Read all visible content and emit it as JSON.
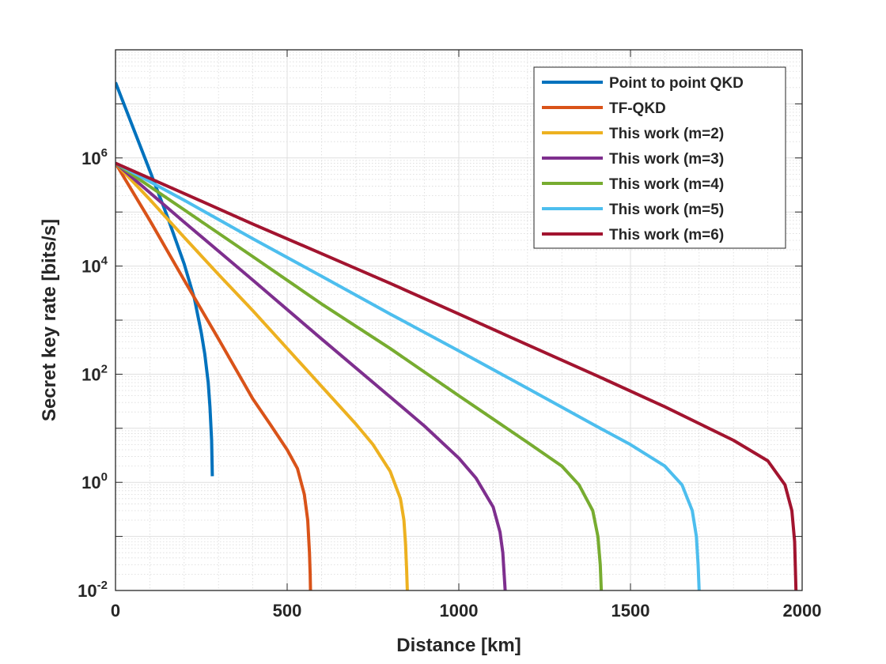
{
  "chart_data": {
    "type": "line",
    "title": "",
    "xlabel": "Distance [km]",
    "ylabel": "Secret key rate [bits/s]",
    "xlim": [
      0,
      2000
    ],
    "ylim": [
      0.01,
      100000000
    ],
    "yscale": "log",
    "grid": true,
    "minor_grid": true,
    "legend_position": "top-right",
    "x_ticks": [
      {
        "value": 0,
        "label": "0"
      },
      {
        "value": 500,
        "label": "500"
      },
      {
        "value": 1000,
        "label": "1000"
      },
      {
        "value": 1500,
        "label": "1500"
      },
      {
        "value": 2000,
        "label": "2000"
      }
    ],
    "y_ticks": [
      {
        "value": 0.01,
        "base": "10",
        "exp": "-2"
      },
      {
        "value": 1,
        "base": "10",
        "exp": "0"
      },
      {
        "value": 100,
        "base": "10",
        "exp": "2"
      },
      {
        "value": 10000,
        "base": "10",
        "exp": "4"
      },
      {
        "value": 1000000,
        "base": "10",
        "exp": "6"
      }
    ],
    "series": [
      {
        "name": "Point to point QKD",
        "color": "#0072BD",
        "x": [
          0,
          50,
          100,
          150,
          200,
          230,
          250,
          260,
          270,
          275,
          280,
          282
        ],
        "y": [
          25000000,
          3800000,
          580000,
          86000,
          11000,
          2500,
          580,
          240,
          70,
          25,
          6,
          1.3
        ]
      },
      {
        "name": "TF-QKD",
        "color": "#D95319",
        "x": [
          0,
          100,
          200,
          300,
          400,
          450,
          500,
          530,
          550,
          560,
          565,
          567,
          568
        ],
        "y": [
          800000,
          70000,
          5500,
          450,
          35,
          12,
          4,
          1.8,
          0.6,
          0.2,
          0.05,
          0.02,
          0.01
        ]
      },
      {
        "name": "This work (m=2)",
        "color": "#EDB120",
        "x": [
          0,
          100,
          200,
          300,
          400,
          500,
          600,
          700,
          750,
          800,
          830,
          840,
          845,
          848,
          850
        ],
        "y": [
          800000,
          170000,
          34000,
          7000,
          1500,
          300,
          60,
          12,
          5,
          1.6,
          0.5,
          0.2,
          0.07,
          0.025,
          0.01
        ]
      },
      {
        "name": "This work (m=3)",
        "color": "#7E2F8E",
        "x": [
          0,
          200,
          400,
          600,
          800,
          900,
          1000,
          1050,
          1100,
          1120,
          1128,
          1132,
          1135
        ],
        "y": [
          800000,
          65000,
          5500,
          450,
          38,
          11,
          2.8,
          1.2,
          0.35,
          0.12,
          0.05,
          0.02,
          0.01
        ]
      },
      {
        "name": "This work (m=4)",
        "color": "#77AC30",
        "x": [
          0,
          200,
          400,
          600,
          800,
          1000,
          1200,
          1300,
          1350,
          1390,
          1405,
          1412,
          1415
        ],
        "y": [
          800000,
          110000,
          15000,
          2000,
          300,
          40,
          5.5,
          2,
          0.9,
          0.3,
          0.1,
          0.03,
          0.01
        ]
      },
      {
        "name": "This work (m=5)",
        "color": "#4DBEEE",
        "x": [
          0,
          200,
          400,
          600,
          800,
          1000,
          1200,
          1400,
          1500,
          1600,
          1650,
          1680,
          1692,
          1697,
          1700
        ],
        "y": [
          800000,
          165000,
          32000,
          6500,
          1300,
          270,
          55,
          11,
          5,
          2,
          0.9,
          0.3,
          0.1,
          0.03,
          0.01
        ]
      },
      {
        "name": "This work (m=6)",
        "color": "#A2142F",
        "x": [
          0,
          200,
          400,
          600,
          800,
          1000,
          1200,
          1400,
          1600,
          1800,
          1900,
          1950,
          1970,
          1978,
          1982
        ],
        "y": [
          800000,
          220000,
          60000,
          17000,
          4800,
          1300,
          350,
          95,
          25,
          6,
          2.5,
          0.9,
          0.3,
          0.08,
          0.01
        ]
      }
    ]
  }
}
